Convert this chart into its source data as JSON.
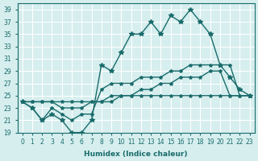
{
  "xlabel": "Humidex (Indice chaleur)",
  "ylabel": "",
  "background_color": "#d6eeee",
  "grid_color": "#ffffff",
  "line_color": "#1a6b6b",
  "xlim": [
    -0.5,
    23.5
  ],
  "ylim": [
    19,
    40
  ],
  "yticks": [
    19,
    21,
    23,
    25,
    27,
    29,
    31,
    33,
    35,
    37,
    39
  ],
  "xticks": [
    0,
    1,
    2,
    3,
    4,
    5,
    6,
    7,
    8,
    9,
    10,
    11,
    12,
    13,
    14,
    15,
    16,
    17,
    18,
    19,
    20,
    21,
    22,
    23
  ],
  "line1": [
    24,
    23,
    21,
    22,
    21,
    19,
    19,
    21,
    30,
    29,
    32,
    35,
    35,
    37,
    35,
    38,
    37,
    39,
    37,
    35,
    30,
    28,
    26,
    25
  ],
  "line2": [
    24,
    23,
    21,
    23,
    22,
    21,
    22,
    22,
    26,
    27,
    27,
    27,
    28,
    28,
    28,
    29,
    29,
    30,
    30,
    30,
    30,
    30,
    25,
    25
  ],
  "line3": [
    24,
    24,
    24,
    24,
    23,
    23,
    23,
    24,
    24,
    25,
    25,
    25,
    26,
    26,
    27,
    27,
    28,
    28,
    28,
    29,
    29,
    25,
    25,
    25
  ],
  "line4": [
    24,
    24,
    24,
    24,
    24,
    24,
    24,
    24,
    24,
    24,
    25,
    25,
    25,
    25,
    25,
    25,
    25,
    25,
    25,
    25,
    25,
    25,
    25,
    25
  ]
}
